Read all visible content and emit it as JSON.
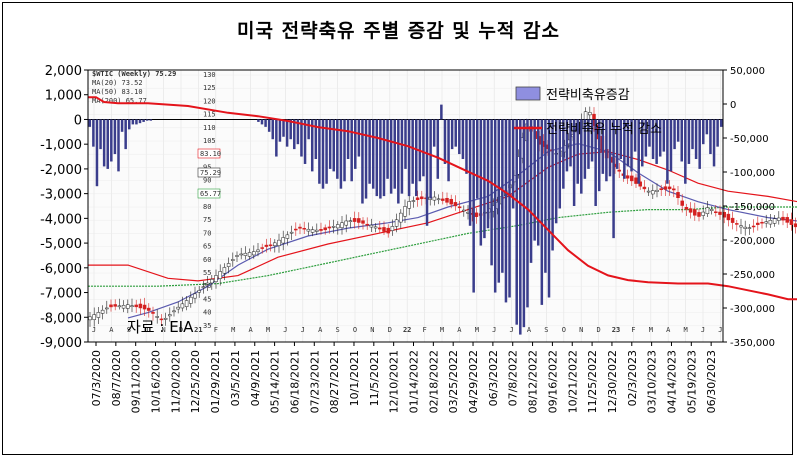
{
  "title": "미국 전략축유 주별 증감 및 누적 감소",
  "source_note": "자료 : EIA",
  "inset": {
    "ticker": "$WTIC (Weekly) 75.29",
    "ma20": "MA(20) 73.52",
    "ma50": "MA(50) 83.10",
    "ma200": "MA(200) 65.77",
    "price_ticks": [
      "130",
      "125",
      "120",
      "115",
      "110",
      "105",
      "100",
      "95",
      "90",
      "85",
      "80",
      "75",
      "70",
      "65",
      "60",
      "55",
      "50",
      "45",
      "40",
      "35"
    ],
    "price_flags": [
      "83.10",
      "75.29",
      "65.77"
    ],
    "month_labels": [
      "J",
      "A",
      "S",
      "O",
      "N",
      "D",
      "21",
      "F",
      "M",
      "A",
      "M",
      "J",
      "J",
      "A",
      "S",
      "O",
      "N",
      "D",
      "22",
      "F",
      "M",
      "A",
      "M",
      "J",
      "J",
      "A",
      "S",
      "O",
      "N",
      "D",
      "23",
      "F",
      "M",
      "A",
      "M",
      "J",
      "J"
    ]
  },
  "legend": {
    "bar_label": "전략비축유증감",
    "line_label": "전략비축유 누적 감소"
  },
  "colors": {
    "bars": "#3a3d8c",
    "cumulative": "#e4141b",
    "ma20": "#5b5bb0",
    "ma50": "#e4141b",
    "ma200": "#2e9e3e",
    "candle_up": "#222222",
    "candle_down": "#d42020"
  },
  "chart_data": {
    "type": "bar",
    "title": "미국 전략축유 주별 증감 및 누적 감소",
    "left_axis": {
      "ylim": [
        -9000,
        2000
      ],
      "ticks": [
        "2,000",
        "1,000",
        "0",
        "-1,000",
        "-2,000",
        "-3,000",
        "-4,000",
        "-5,000",
        "-6,000",
        "-7,000",
        "-8,000",
        "-9,000"
      ]
    },
    "right_axis": {
      "ylim": [
        -350000,
        50000
      ],
      "ticks": [
        "50,000",
        "0",
        "-50,000",
        "-100,000",
        "-150,000",
        "-200,000",
        "-250,000",
        "-300,000",
        "-350,000"
      ]
    },
    "x_labels": [
      "07/3/2020",
      "08/7/2020",
      "09/11/2020",
      "10/16/2020",
      "11/20/2020",
      "12/25/2020",
      "01/29/2021",
      "03/5/2021",
      "04/9/2021",
      "05/14/2021",
      "06/18/2021",
      "07/23/2021",
      "08/27/2021",
      "10/1/2021",
      "11/5/2021",
      "12/10/2021",
      "01/14/2022",
      "02/18/2022",
      "03/25/2022",
      "04/29/2022",
      "06/3/2022",
      "07/8/2022",
      "08/12/2022",
      "09/16/2022",
      "10/21/2022",
      "11/25/2022",
      "12/30/2022",
      "02/3/2023",
      "03/10/2023",
      "04/14/2023",
      "05/19/2023",
      "06/30/2023"
    ],
    "series": [
      {
        "name": "전략비축유증감",
        "axis": "left",
        "values": [
          -300,
          -1100,
          -2700,
          -1200,
          -1900,
          -2000,
          -1700,
          -1400,
          -2100,
          -500,
          -1200,
          -400,
          -200,
          -200,
          -150,
          -100,
          -50,
          -50,
          0,
          0,
          0,
          0,
          0,
          0,
          0,
          0,
          0,
          0,
          0,
          0,
          0,
          0,
          0,
          0,
          0,
          0,
          0,
          0,
          0,
          0,
          0,
          0,
          0,
          0,
          0,
          0,
          0,
          -100,
          -200,
          -300,
          -500,
          -800,
          -1500,
          -900,
          -700,
          -1100,
          -800,
          -1200,
          -1000,
          -1500,
          -1800,
          -800,
          -2100,
          -1600,
          -2600,
          -2800,
          -2600,
          -2000,
          -2100,
          -2400,
          -2800,
          -2500,
          -1600,
          -2500,
          -2000,
          -1500,
          -3400,
          -3200,
          -2600,
          -2800,
          -3100,
          -3200,
          -3100,
          -2400,
          -3000,
          -2800,
          -3400,
          -3000,
          -2000,
          -3100,
          -2600,
          -3100,
          -2500,
          -2300,
          -4300,
          -3200,
          -1100,
          -2400,
          600,
          -1800,
          -2500,
          -1200,
          -1100,
          -1400,
          -1600,
          -2200,
          -4300,
          -7000,
          -3200,
          -5100,
          -4800,
          -4400,
          -5900,
          -7000,
          -6600,
          -6200,
          -7400,
          -7200,
          -3600,
          -8300,
          -8700,
          -8400,
          -7600,
          -5800,
          -4900,
          -5100,
          -7500,
          -6200,
          -7200,
          -5300,
          -4200,
          -3600,
          -2800,
          -2100,
          -1900,
          -3500,
          -2600,
          -3000,
          -2400,
          -2000,
          -1700,
          -3500,
          -2900,
          -2200,
          -2500,
          -2300,
          -4800,
          -2000,
          -1600,
          -2400,
          -1900,
          -2100,
          -1300,
          -2600,
          -1900,
          -1500,
          -1100,
          -1600,
          -1800,
          -1500,
          -1300,
          -2600,
          -2100,
          -1200,
          -900,
          -1700,
          -2600,
          -1800,
          -1200,
          -1600,
          -2000,
          -1000,
          -600,
          -1400,
          -1900,
          -1100,
          -300
        ]
      },
      {
        "name": "전략비축유 누적 감소",
        "axis": "right",
        "points": [
          [
            0,
            10000
          ],
          [
            8,
            10000
          ],
          [
            16,
            3000
          ],
          [
            30,
            1000
          ],
          [
            60,
            1000
          ],
          [
            100,
            -3000
          ],
          [
            140,
            -13000
          ],
          [
            170,
            -18000
          ],
          [
            200,
            -25000
          ],
          [
            230,
            -34000
          ],
          [
            260,
            -40000
          ],
          [
            290,
            -50000
          ],
          [
            320,
            -62000
          ],
          [
            350,
            -79000
          ],
          [
            375,
            -96000
          ],
          [
            400,
            -113000
          ],
          [
            420,
            -132000
          ],
          [
            440,
            -155000
          ],
          [
            460,
            -185000
          ],
          [
            480,
            -215000
          ],
          [
            500,
            -238000
          ],
          [
            520,
            -252000
          ],
          [
            540,
            -259000
          ],
          [
            560,
            -262000
          ],
          [
            590,
            -264000
          ],
          [
            620,
            -264000
          ],
          [
            640,
            -268000
          ],
          [
            660,
            -274000
          ],
          [
            680,
            -280000
          ],
          [
            700,
            -287000
          ],
          [
            725,
            -287000
          ]
        ]
      }
    ]
  }
}
